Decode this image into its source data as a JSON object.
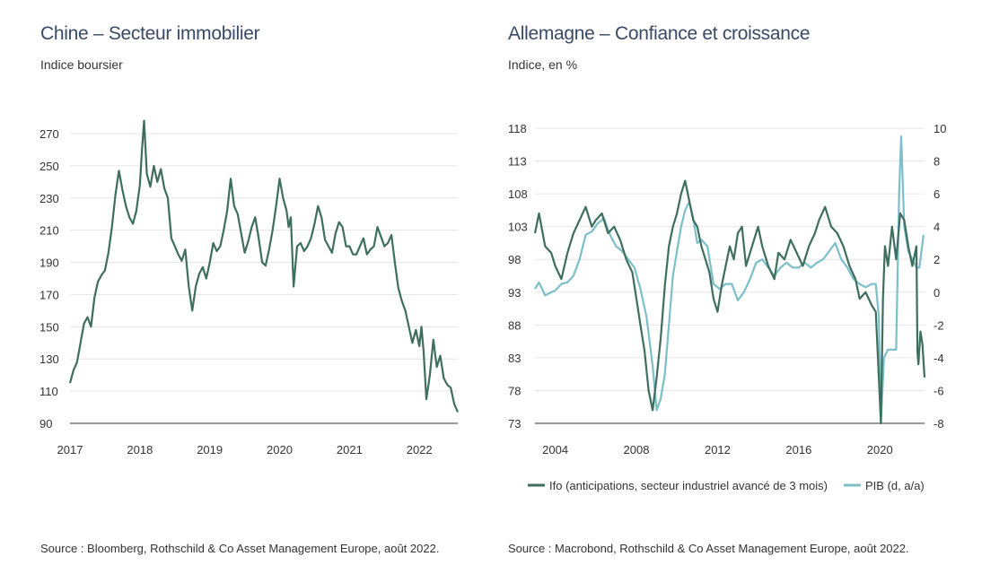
{
  "charts": [
    {
      "title": "Chine – Secteur immobilier",
      "subtitle": "Indice boursier",
      "source": "Source : Bloomberg, Rothschild & Co Asset Management Europe, août 2022."
    },
    {
      "title": "Allemagne – Confiance et croissance",
      "subtitle": "Indice, en %",
      "source": "Source : Macrobond, Rothschild & Co Asset Management Europe, août 2022."
    }
  ],
  "colors": {
    "ifo": "#3e6e5e",
    "pib": "#7dbfc9",
    "grid": "#e6e6e6",
    "axis": "#9a9a9a"
  },
  "chart_data": [
    {
      "type": "line",
      "title": "Chine – Secteur immobilier",
      "subtitle": "Indice boursier",
      "ylim": [
        90,
        270
      ],
      "yticks": [
        90,
        110,
        130,
        150,
        170,
        190,
        210,
        230,
        250,
        270
      ],
      "xlim": [
        2017,
        2022.55
      ],
      "xticks": [
        2017,
        2018,
        2019,
        2020,
        2021,
        2022
      ],
      "grid": true,
      "series": [
        {
          "color": "#3e6e5e",
          "x": [
            2017.0,
            2017.05,
            2017.1,
            2017.15,
            2017.2,
            2017.25,
            2017.3,
            2017.35,
            2017.4,
            2017.45,
            2017.5,
            2017.55,
            2017.6,
            2017.65,
            2017.7,
            2017.75,
            2017.8,
            2017.85,
            2017.9,
            2017.95,
            2018.0,
            2018.03,
            2018.06,
            2018.1,
            2018.15,
            2018.2,
            2018.25,
            2018.3,
            2018.35,
            2018.4,
            2018.45,
            2018.5,
            2018.55,
            2018.6,
            2018.65,
            2018.7,
            2018.75,
            2018.8,
            2018.85,
            2018.9,
            2018.95,
            2019.0,
            2019.05,
            2019.1,
            2019.15,
            2019.2,
            2019.25,
            2019.3,
            2019.35,
            2019.4,
            2019.45,
            2019.5,
            2019.55,
            2019.6,
            2019.65,
            2019.7,
            2019.75,
            2019.8,
            2019.85,
            2019.9,
            2019.95,
            2020.0,
            2020.05,
            2020.1,
            2020.13,
            2020.16,
            2020.2,
            2020.25,
            2020.3,
            2020.35,
            2020.4,
            2020.45,
            2020.5,
            2020.55,
            2020.6,
            2020.65,
            2020.7,
            2020.75,
            2020.8,
            2020.85,
            2020.9,
            2020.95,
            2021.0,
            2021.05,
            2021.1,
            2021.15,
            2021.2,
            2021.25,
            2021.3,
            2021.35,
            2021.4,
            2021.45,
            2021.5,
            2021.55,
            2021.6,
            2021.65,
            2021.7,
            2021.75,
            2021.8,
            2021.85,
            2021.9,
            2021.95,
            2022.0,
            2022.03,
            2022.06,
            2022.1,
            2022.15,
            2022.2,
            2022.25,
            2022.3,
            2022.35,
            2022.4,
            2022.45,
            2022.5,
            2022.55
          ],
          "y": [
            115,
            123,
            128,
            140,
            152,
            156,
            150,
            168,
            178,
            182,
            185,
            196,
            212,
            232,
            247,
            235,
            225,
            218,
            214,
            222,
            238,
            260,
            278,
            245,
            237,
            250,
            240,
            248,
            236,
            230,
            205,
            200,
            195,
            191,
            198,
            175,
            160,
            175,
            183,
            187,
            180,
            190,
            202,
            197,
            200,
            210,
            222,
            242,
            225,
            220,
            208,
            196,
            203,
            212,
            218,
            205,
            190,
            188,
            198,
            210,
            225,
            242,
            230,
            222,
            212,
            218,
            175,
            200,
            202,
            197,
            200,
            205,
            214,
            225,
            218,
            204,
            200,
            196,
            208,
            215,
            212,
            200,
            200,
            195,
            195,
            200,
            205,
            195,
            198,
            200,
            212,
            206,
            200,
            202,
            207,
            190,
            174,
            166,
            160,
            150,
            140,
            148,
            138,
            150,
            135,
            105,
            120,
            142,
            125,
            132,
            118,
            114,
            112,
            102,
            97
          ]
        }
      ]
    },
    {
      "type": "line",
      "title": "Allemagne – Confiance et croissance",
      "subtitle": "Indice, en %",
      "ylim": [
        73,
        118
      ],
      "yticks": [
        73,
        78,
        83,
        88,
        93,
        98,
        103,
        108,
        113,
        118
      ],
      "y2lim": [
        -8,
        10
      ],
      "y2ticks": [
        -8,
        -6,
        -4,
        -2,
        0,
        2,
        4,
        6,
        8,
        10
      ],
      "xlim": [
        2003,
        2022.2
      ],
      "xticks": [
        2004,
        2008,
        2012,
        2016,
        2020
      ],
      "grid": true,
      "legend_position": "bottom",
      "series": [
        {
          "name": "Ifo (anticipations, secteur industriel avancé de 3 mois)",
          "axis": "left",
          "color": "#3e6e5e",
          "x": [
            2003.0,
            2003.2,
            2003.5,
            2003.8,
            2004.0,
            2004.3,
            2004.6,
            2004.9,
            2005.2,
            2005.5,
            2005.8,
            2006.0,
            2006.3,
            2006.6,
            2006.9,
            2007.2,
            2007.5,
            2007.8,
            2008.0,
            2008.2,
            2008.4,
            2008.6,
            2008.8,
            2009.0,
            2009.2,
            2009.4,
            2009.6,
            2009.8,
            2010.0,
            2010.2,
            2010.4,
            2010.6,
            2010.8,
            2011.0,
            2011.2,
            2011.4,
            2011.6,
            2011.8,
            2012.0,
            2012.2,
            2012.4,
            2012.6,
            2012.8,
            2013.0,
            2013.2,
            2013.4,
            2013.6,
            2013.8,
            2014.0,
            2014.2,
            2014.5,
            2014.8,
            2015.0,
            2015.3,
            2015.6,
            2015.9,
            2016.2,
            2016.5,
            2016.8,
            2017.0,
            2017.3,
            2017.6,
            2017.9,
            2018.2,
            2018.5,
            2018.8,
            2019.0,
            2019.3,
            2019.6,
            2019.8,
            2019.95,
            2020.05,
            2020.15,
            2020.25,
            2020.4,
            2020.6,
            2020.8,
            2021.0,
            2021.2,
            2021.4,
            2021.6,
            2021.8,
            2021.85,
            2021.9,
            2022.0,
            2022.1,
            2022.2
          ],
          "y": [
            102,
            105,
            100,
            99,
            97,
            95,
            99,
            102,
            104,
            106,
            103,
            104,
            105,
            102,
            103,
            101,
            98,
            96,
            92,
            88,
            84,
            78,
            75,
            80,
            86,
            94,
            100,
            103,
            105,
            108,
            110,
            107,
            104,
            103,
            100,
            98,
            96,
            92,
            90,
            94,
            97,
            100,
            98,
            102,
            103,
            97,
            99,
            101,
            103,
            100,
            97,
            95,
            99,
            98,
            101,
            99,
            97,
            100,
            102,
            104,
            106,
            103,
            102,
            100,
            97,
            95,
            92,
            93,
            91,
            90,
            80,
            73,
            92,
            100,
            97,
            103,
            98,
            105,
            104,
            100,
            97,
            100,
            84,
            82,
            87,
            85,
            80
          ]
        },
        {
          "name": "PIB (d, a/a)",
          "axis": "right",
          "color": "#7dbfc9",
          "x": [
            2003.0,
            2003.2,
            2003.5,
            2003.8,
            2004.0,
            2004.3,
            2004.6,
            2004.9,
            2005.2,
            2005.5,
            2005.8,
            2006.1,
            2006.4,
            2006.7,
            2007.0,
            2007.3,
            2007.6,
            2007.9,
            2008.2,
            2008.5,
            2008.8,
            2009.0,
            2009.2,
            2009.4,
            2009.6,
            2009.8,
            2010.0,
            2010.2,
            2010.4,
            2010.6,
            2010.8,
            2011.0,
            2011.2,
            2011.5,
            2011.8,
            2012.1,
            2012.4,
            2012.7,
            2013.0,
            2013.3,
            2013.6,
            2013.9,
            2014.2,
            2014.5,
            2014.8,
            2015.1,
            2015.4,
            2015.7,
            2016.0,
            2016.3,
            2016.6,
            2016.9,
            2017.2,
            2017.5,
            2017.8,
            2018.1,
            2018.4,
            2018.7,
            2019.0,
            2019.3,
            2019.6,
            2019.8,
            2019.95,
            2020.05,
            2020.2,
            2020.4,
            2020.6,
            2020.8,
            2020.95,
            2021.05,
            2021.2,
            2021.4,
            2021.6,
            2021.8,
            2021.95,
            2022.05,
            2022.15
          ],
          "y": [
            0.2,
            0.6,
            -0.2,
            0.0,
            0.1,
            0.5,
            0.6,
            1.0,
            2.0,
            3.5,
            3.7,
            4.2,
            4.5,
            3.5,
            2.8,
            2.5,
            2.0,
            1.5,
            0.2,
            -1.5,
            -4.5,
            -7.2,
            -6.5,
            -5.0,
            -2.0,
            1.0,
            2.5,
            4.0,
            5.0,
            5.5,
            4.5,
            3.0,
            3.2,
            2.8,
            0.5,
            0.2,
            0.5,
            0.5,
            -0.5,
            0.0,
            0.8,
            1.8,
            2.0,
            1.5,
            1.0,
            1.5,
            1.8,
            1.5,
            1.5,
            1.8,
            1.5,
            1.8,
            2.0,
            2.5,
            3.0,
            2.0,
            1.5,
            0.8,
            0.5,
            0.3,
            0.5,
            0.5,
            -1.5,
            -8.0,
            -4.0,
            -3.5,
            -3.5,
            -3.5,
            6.0,
            9.5,
            4.0,
            2.5,
            2.0,
            1.5,
            1.5,
            2.5,
            3.5
          ]
        }
      ]
    }
  ]
}
